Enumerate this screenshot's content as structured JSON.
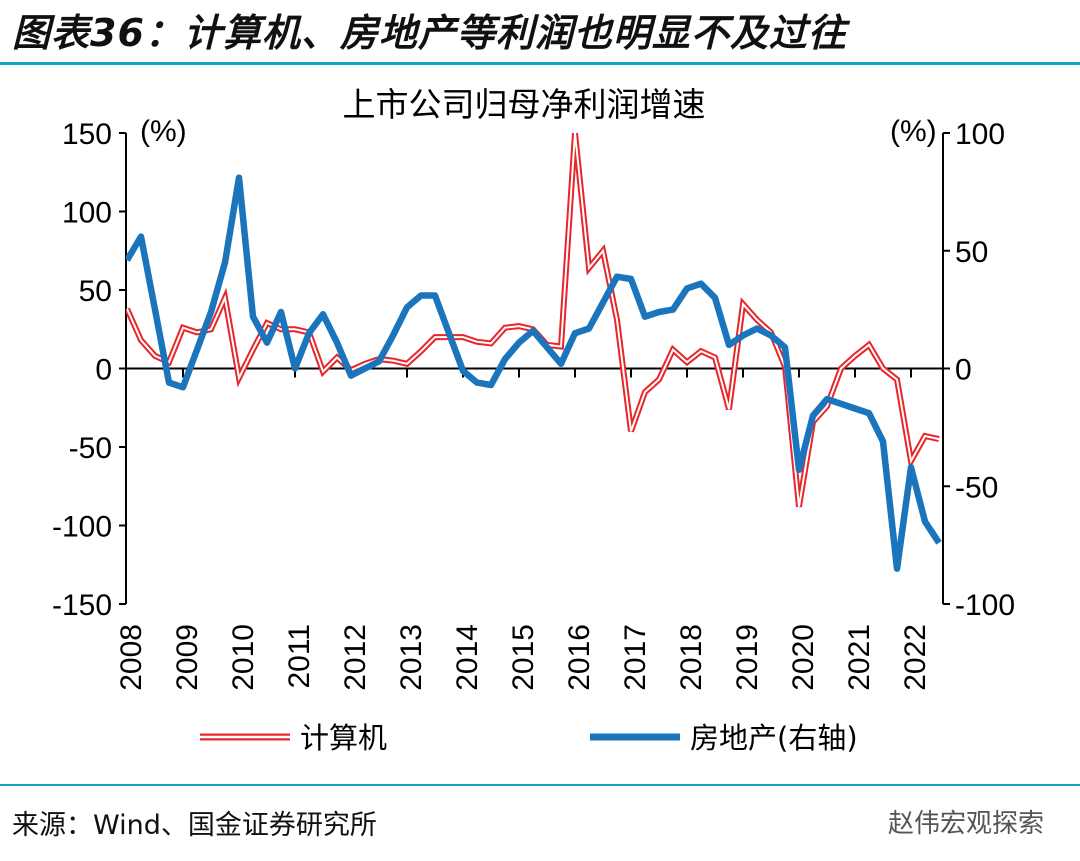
{
  "figure_title": "图表36：计算机、房地产等利润也明显不及过往",
  "source": "来源：Wind、国金证券研究所",
  "watermark": "赵伟宏观探索",
  "colors": {
    "computer": "#e8262a",
    "realestate": "#1a75bc",
    "rule": "#1a9fc9"
  },
  "chart_data": {
    "type": "line",
    "title": "上市公司归母净利润增速",
    "y_left_unit": "(%)",
    "y_right_unit": "(%)",
    "y_left_lim": [
      -150,
      150
    ],
    "y_left_ticks": [
      150,
      100,
      50,
      0,
      -50,
      -100,
      -150
    ],
    "y_right_lim": [
      -100,
      100
    ],
    "y_right_ticks": [
      100,
      50,
      0,
      -50,
      -100
    ],
    "x_start": "2008Q1",
    "frequency": "quarterly",
    "x_ticks": [
      "2008",
      "2009",
      "2010",
      "2011",
      "2012",
      "2013",
      "2014",
      "2015",
      "2016",
      "2017",
      "2018",
      "2019",
      "2020",
      "2021",
      "2022"
    ],
    "legend": "bottom",
    "series": [
      {
        "name": "计算机",
        "axis": "left",
        "values": [
          38,
          18,
          8,
          4,
          26,
          23,
          25,
          45,
          -6,
          12,
          29,
          25,
          25,
          23,
          -2,
          7,
          -1,
          3,
          6,
          5,
          3,
          11,
          20,
          20,
          20,
          17,
          16,
          26,
          27,
          25,
          15,
          14,
          150,
          64,
          75,
          31,
          -40,
          -15,
          -7,
          12,
          4,
          11,
          7,
          -26,
          41,
          31,
          23,
          1,
          -88,
          -34,
          -24,
          0,
          8,
          15,
          0,
          -7,
          -59,
          -43,
          -45
        ]
      },
      {
        "name": "房地产(右轴)",
        "axis": "right",
        "values": [
          46,
          56,
          25,
          -6,
          -8,
          8,
          24,
          45,
          81,
          22,
          11,
          24,
          0,
          15,
          23,
          11,
          -3,
          0,
          3,
          14,
          26,
          31,
          31,
          15,
          -1,
          -6,
          -7,
          4,
          11,
          16,
          9,
          2,
          15,
          17,
          28,
          39,
          38,
          22,
          24,
          25,
          34,
          36,
          30,
          10,
          14,
          17,
          14,
          9,
          -43,
          -20,
          -13,
          -15,
          -17,
          -19,
          -31,
          -85,
          -42,
          -65,
          -74
        ]
      }
    ]
  }
}
